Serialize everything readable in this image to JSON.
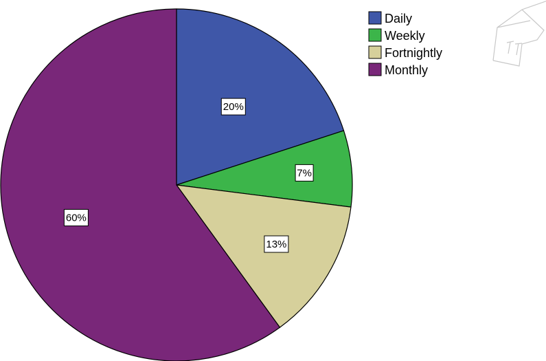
{
  "chart_data": {
    "type": "pie",
    "categories": [
      "Daily",
      "Weekly",
      "Fortnightly",
      "Monthly"
    ],
    "values": [
      20,
      7,
      13,
      60
    ],
    "data_labels": [
      "20%",
      "7%",
      "13%",
      "60%"
    ],
    "colors": [
      "#3f57a8",
      "#3cb54a",
      "#d6d09b",
      "#792779"
    ],
    "legend": {
      "placement": "top-right",
      "entries": [
        "Daily",
        "Weekly",
        "Fortnightly",
        "Monthly"
      ]
    },
    "start_angle": "12 o'clock",
    "direction": "clockwise"
  }
}
